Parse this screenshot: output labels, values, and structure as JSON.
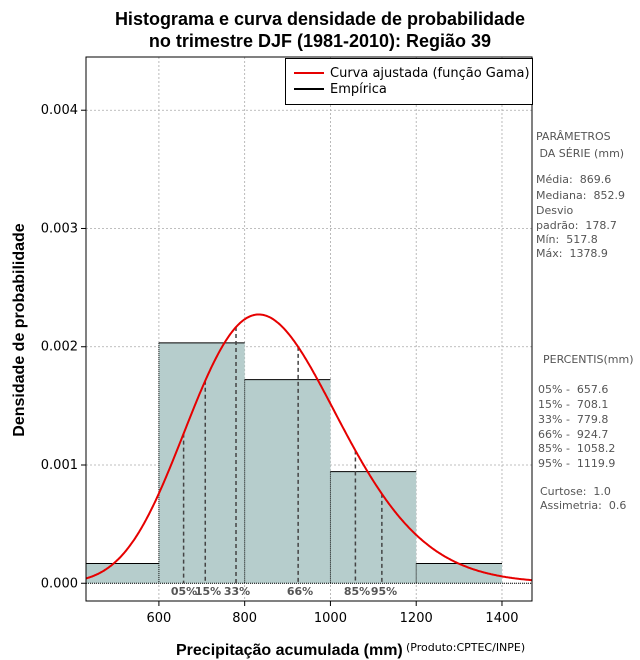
{
  "title": {
    "line1": "Histograma e curva densidade de probabilidade",
    "line2": "no trimestre DJF (1981-2010): Região 39"
  },
  "legend": {
    "items": [
      {
        "label": "Curva ajustada (função Gama)",
        "color": "#e60000"
      },
      {
        "label": "Empírica",
        "color": "#000000"
      }
    ]
  },
  "axis_labels": {
    "x": "Precipitação acumulada (mm)",
    "y": "Densidade de probabilidade",
    "credit": "(Produto:CPTEC/INPE)"
  },
  "parametros": {
    "heading1": "PARÂMETROS",
    "heading2": " DA SÉRIE (mm)",
    "lines": [
      "Média:  869.6",
      "Mediana:  852.9",
      "Desvio",
      "padrão:  178.7",
      "Mín:  517.8",
      "Máx:  1378.9"
    ]
  },
  "percentis": {
    "heading": "PERCENTIS(mm)",
    "lines": [
      "05% -  657.6",
      "15% -  708.1",
      "33% -  779.8",
      "66% -  924.7",
      "85% -  1058.2",
      "95% -  1119.9"
    ]
  },
  "momentos": {
    "lines": [
      "Curtose:  1.0",
      "Assimetria:  0.6"
    ]
  },
  "chart_data": {
    "type": "bar",
    "subtype": "histogram_with_density_curve",
    "xlim": [
      430,
      1470
    ],
    "ylim": [
      -0.00015,
      0.00445
    ],
    "x_ticks": [
      600,
      800,
      1000,
      1200,
      1400
    ],
    "y_ticks": [
      0.0,
      0.001,
      0.002,
      0.003,
      0.004
    ],
    "y_tick_labels": [
      "0.000",
      "0.001",
      "0.002",
      "0.003",
      "0.004"
    ],
    "grid": true,
    "bins": [
      {
        "x0": 400,
        "x1": 600,
        "density": 0.000167
      },
      {
        "x0": 600,
        "x1": 800,
        "density": 0.002033
      },
      {
        "x0": 800,
        "x1": 1000,
        "density": 0.001722
      },
      {
        "x0": 1000,
        "x1": 1200,
        "density": 0.000944
      },
      {
        "x0": 1200,
        "x1": 1400,
        "density": 0.000167
      }
    ],
    "bar_color": "#b6cdcc",
    "curve": {
      "name": "Curva ajustada (função Gama)",
      "shape": 23.68,
      "scale": 36.72,
      "color": "#e60000"
    },
    "percentiles": [
      {
        "label": "05%",
        "value": 657.6
      },
      {
        "label": "15%",
        "value": 708.1
      },
      {
        "label": "33%",
        "value": 779.8
      },
      {
        "label": "66%",
        "value": 924.7
      },
      {
        "label": "85%",
        "value": 1058.2
      },
      {
        "label": "95%",
        "value": 1119.9
      }
    ]
  }
}
